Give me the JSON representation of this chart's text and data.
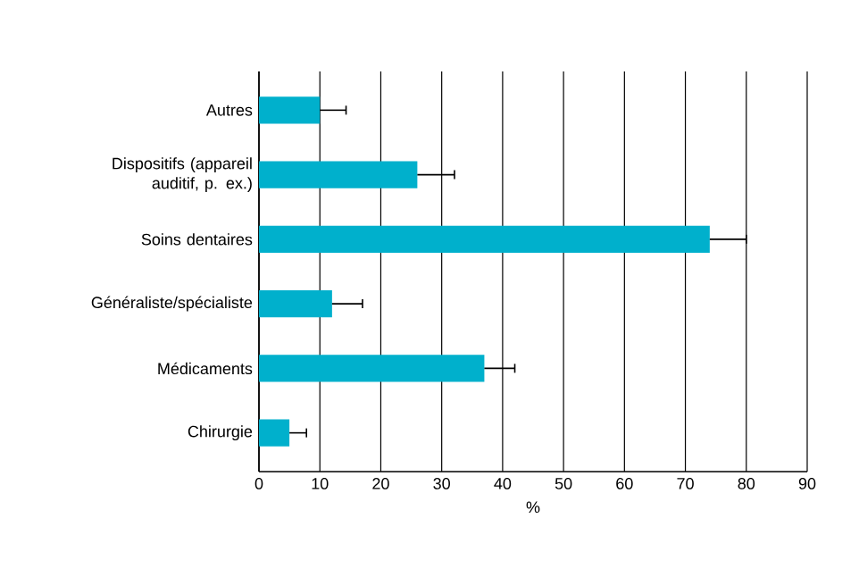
{
  "chart_data": {
    "type": "bar",
    "orientation": "horizontal",
    "xlabel": "%",
    "categories": [
      "Autres",
      "Dispositifs (appareil auditif, p. ex.)",
      "Soins dentaires",
      "Généraliste/spécialiste",
      "Médicaments",
      "Chirurgie"
    ],
    "values": [
      10,
      26,
      74,
      12,
      37,
      5
    ],
    "errors": [
      [
        10,
        14.3
      ],
      [
        26,
        32.1
      ],
      [
        74,
        80
      ],
      [
        12,
        17
      ],
      [
        37,
        42
      ],
      [
        5,
        7.8
      ]
    ],
    "color": "#00b0cc",
    "xlim": [
      0,
      90
    ],
    "xticks": [
      0,
      10,
      20,
      30,
      40,
      50,
      60,
      70,
      80,
      90
    ],
    "grid": "x"
  }
}
